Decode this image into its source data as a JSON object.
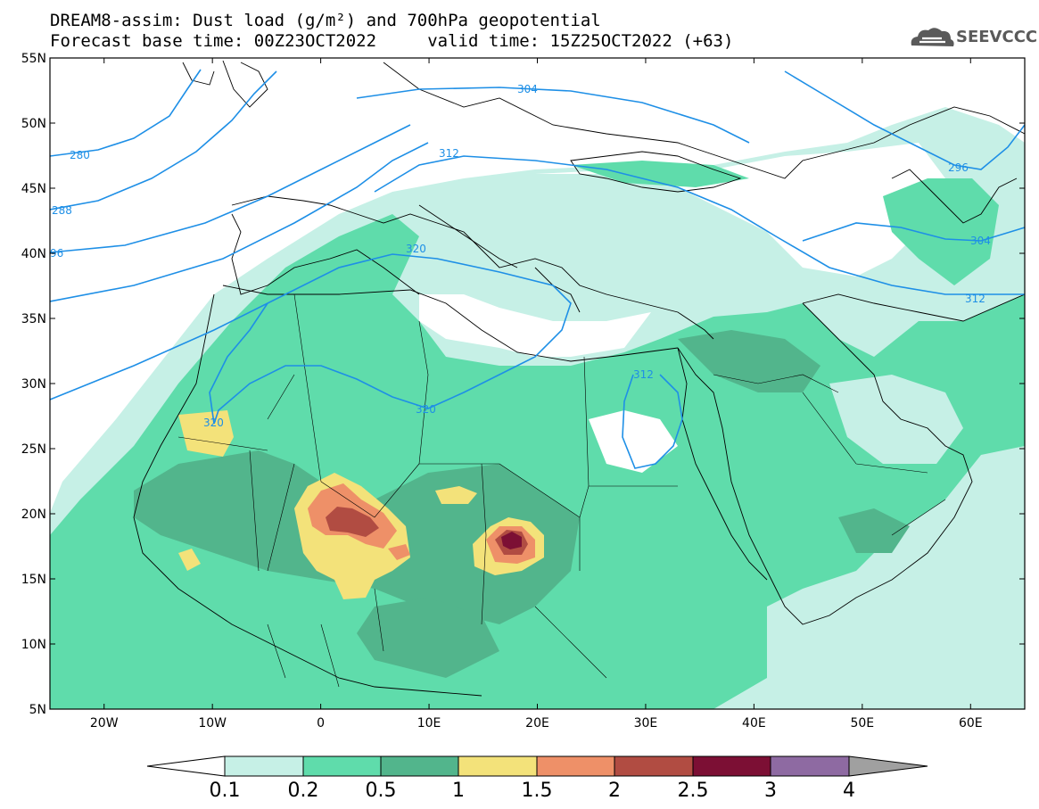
{
  "header": {
    "line1": "DREAM8-assim: Dust load (g/m²) and 700hPa geopotential",
    "line2": "Forecast base time: 00Z23OCT2022     valid time: 15Z25OCT2022 (+63)"
  },
  "logo": {
    "text": "SEEVCCC",
    "icon": "cloud-logo-icon"
  },
  "axes": {
    "lat_labels": [
      "55N",
      "50N",
      "45N",
      "40N",
      "35N",
      "30N",
      "25N",
      "20N",
      "15N",
      "10N",
      "5N"
    ],
    "lon_labels": [
      "20W",
      "10W",
      "0",
      "10E",
      "20E",
      "30E",
      "40E",
      "50E",
      "60E"
    ],
    "lat_range": [
      5,
      55
    ],
    "lon_range": [
      -25,
      65
    ]
  },
  "colors": {
    "c01": "#c6f0e6",
    "c02": "#5fdcab",
    "c05": "#52b58c",
    "c1": "#f3e27a",
    "c15": "#ee9068",
    "c2": "#b14c42",
    "c25": "#7c0f34",
    "c3": "#8e6aa2",
    "c4": "#a0a0a0",
    "contour": "#1e8fe6"
  },
  "colorbar": {
    "labels": [
      "0.1",
      "0.2",
      "0.5",
      "1",
      "1.5",
      "2",
      "2.5",
      "3",
      "4"
    ]
  },
  "contour_labels": {
    "l280": "280",
    "l288": "288",
    "l296a": "96",
    "l304a": "304",
    "l312a": "312",
    "l320a": "320",
    "l320b": "320",
    "l320c": "320",
    "l312b": "312",
    "l296b": "296",
    "l304b": "304",
    "l312c": "312"
  }
}
